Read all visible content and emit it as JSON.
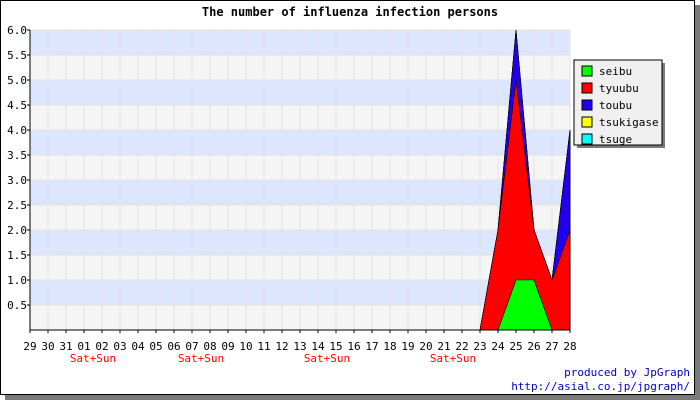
{
  "chart_data": {
    "type": "area",
    "title": "The number of influenza infection persons",
    "xlabel": "",
    "ylabel": "",
    "ylim": [
      0,
      6
    ],
    "yticks": [
      "6.0",
      "5.5",
      "5.0",
      "4.5",
      "4.0",
      "3.5",
      "3.0",
      "2.5",
      "2.0",
      "1.5",
      "1.0",
      "0.5"
    ],
    "categories": [
      "29",
      "30",
      "31",
      "01",
      "02",
      "03",
      "04",
      "05",
      "06",
      "07",
      "08",
      "09",
      "10",
      "11",
      "12",
      "13",
      "14",
      "15",
      "16",
      "17",
      "18",
      "19",
      "20",
      "21",
      "22",
      "23",
      "24",
      "25",
      "26",
      "27",
      "28"
    ],
    "weekend_label": "Sat+Sun",
    "weekend_after": [
      "01",
      "07",
      "14",
      "21"
    ],
    "stacked": true,
    "series": [
      {
        "name": "seibu",
        "color": "#00ff00",
        "values": [
          0,
          0,
          0,
          0,
          0,
          0,
          0,
          0,
          0,
          0,
          0,
          0,
          0,
          0,
          0,
          0,
          0,
          0,
          0,
          0,
          0,
          0,
          0,
          0,
          0,
          0,
          0,
          1,
          1,
          0,
          0
        ]
      },
      {
        "name": "tyuubu",
        "color": "#ff0000",
        "values": [
          0,
          0,
          0,
          0,
          0,
          0,
          0,
          0,
          0,
          0,
          0,
          0,
          0,
          0,
          0,
          0,
          0,
          0,
          0,
          0,
          0,
          0,
          0,
          0,
          0,
          0,
          2,
          4,
          1,
          1,
          2
        ]
      },
      {
        "name": "toubu",
        "color": "#2200ee",
        "values": [
          0,
          0,
          0,
          0,
          0,
          0,
          0,
          0,
          0,
          0,
          0,
          0,
          0,
          0,
          0,
          0,
          0,
          0,
          0,
          0,
          0,
          0,
          0,
          0,
          0,
          0,
          0,
          1,
          0,
          0,
          2
        ]
      },
      {
        "name": "tsukigase",
        "color": "#ffff00",
        "values": [
          0,
          0,
          0,
          0,
          0,
          0,
          0,
          0,
          0,
          0,
          0,
          0,
          0,
          0,
          0,
          0,
          0,
          0,
          0,
          0,
          0,
          0,
          0,
          0,
          0,
          0,
          0,
          0,
          0,
          0,
          0
        ]
      },
      {
        "name": "tsuge",
        "color": "#00ffff",
        "values": [
          0,
          0,
          0,
          0,
          0,
          0,
          0,
          0,
          0,
          0,
          0,
          0,
          0,
          0,
          0,
          0,
          0,
          0,
          0,
          0,
          0,
          0,
          0,
          0,
          0,
          0,
          0,
          0,
          0,
          0,
          0
        ]
      }
    ],
    "band_colors": [
      "#dde6ff",
      "#f5f5f5"
    ],
    "weekend_color": "#ff0000",
    "grid": true,
    "legend_position": "right"
  },
  "credit": {
    "line1": "produced by JpGraph",
    "line2": "http://asial.co.jp/jpgraph/"
  }
}
